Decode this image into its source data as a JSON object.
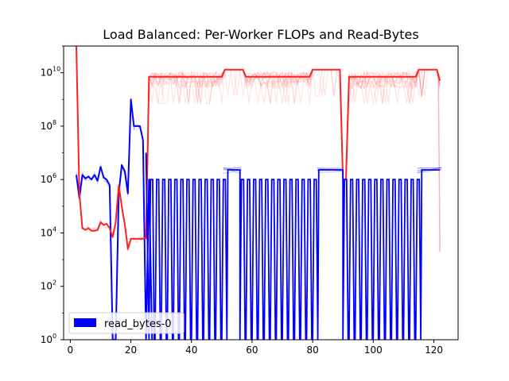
{
  "chart_data": {
    "type": "line",
    "title": "Load Balanced: Per-Worker FLOPs and Read-Bytes",
    "xlabel": "",
    "ylabel": "",
    "xlim": [
      -2.2,
      128
    ],
    "ylim": [
      1,
      100000000000
    ],
    "yscale": "log",
    "grid": false,
    "legend": {
      "placement": "lower-left",
      "entries": [
        "read_bytes-0"
      ]
    },
    "x_ticks": [
      {
        "value": 0,
        "label": "0"
      },
      {
        "value": 20,
        "label": "20"
      },
      {
        "value": 40,
        "label": "40"
      },
      {
        "value": 60,
        "label": "60"
      },
      {
        "value": 80,
        "label": "80"
      },
      {
        "value": 100,
        "label": "100"
      },
      {
        "value": 120,
        "label": "120"
      }
    ],
    "y_ticks": [
      {
        "value": 1,
        "base": "10",
        "exp": "0"
      },
      {
        "value": 100,
        "base": "10",
        "exp": "2"
      },
      {
        "value": 10000,
        "base": "10",
        "exp": "4"
      },
      {
        "value": 1000000,
        "base": "10",
        "exp": "6"
      },
      {
        "value": 100000000,
        "base": "10",
        "exp": "8"
      },
      {
        "value": 10000000000,
        "base": "10",
        "exp": "10"
      }
    ],
    "colors": {
      "flops": "#ff2020",
      "read_bytes": "#0000ff"
    },
    "series": [
      {
        "name": "read_bytes-0",
        "color": "#0000ff",
        "x": [
          2,
          3,
          4,
          5,
          6,
          7,
          8,
          9,
          10,
          11,
          12,
          13,
          14,
          15,
          16,
          17,
          18,
          19,
          20,
          21,
          22,
          23,
          24,
          25,
          26,
          27
        ],
        "y": [
          1500000,
          200000,
          1500000,
          1100000,
          1300000,
          1000000,
          1500000,
          900000,
          3000000,
          1200000,
          1000000,
          600000,
          1,
          1,
          300000,
          3500000,
          2000000,
          300000,
          1000000000,
          100000000,
          100000000,
          100000000,
          30000000,
          1,
          1000000,
          1
        ]
      },
      {
        "name": "",
        "color": "#ff2020",
        "x": [
          2,
          3,
          4,
          5,
          6,
          7,
          8,
          9,
          10,
          11,
          12,
          13,
          14,
          15,
          16,
          17,
          18,
          19,
          20,
          21,
          22,
          23,
          24,
          25
        ],
        "y": [
          100000000000,
          300000,
          15000,
          13000,
          15000,
          12000,
          12000,
          13000,
          25000,
          20000,
          22000,
          15000,
          7000,
          25000,
          600000,
          100000,
          20000,
          2500,
          6000,
          6000,
          6000,
          6000,
          6000,
          7000
        ]
      }
    ]
  }
}
